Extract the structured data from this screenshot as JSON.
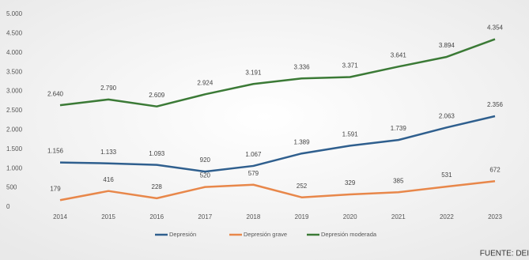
{
  "chart_data": {
    "type": "line",
    "categories": [
      "2014",
      "2015",
      "2016",
      "2017",
      "2018",
      "2019",
      "2020",
      "2021",
      "2022",
      "2023"
    ],
    "series": [
      {
        "name": "Depresión",
        "color": "#2f5f8e",
        "values": [
          1156,
          1133,
          1093,
          920,
          1067,
          1389,
          1591,
          1739,
          2063,
          2356
        ],
        "value_labels": [
          "1.156",
          "1.133",
          "1.093",
          "920",
          "1.067",
          "1.389",
          "1.591",
          "1.739",
          "2.063",
          "2.356"
        ]
      },
      {
        "name": "Depresión grave",
        "color": "#e8874a",
        "values": [
          179,
          416,
          228,
          520,
          579,
          252,
          329,
          385,
          531,
          672
        ]
      },
      {
        "name": "Depresión moderada",
        "color": "#3b7a36",
        "values": [
          2640,
          2790,
          2609,
          2924,
          3191,
          3336,
          3371,
          3641,
          3894,
          4354
        ],
        "value_labels": [
          "2.640",
          "2.790",
          "2.609",
          "2.924",
          "3.191",
          "3.336",
          "3.371",
          "3.641",
          "3.894",
          "4.354"
        ]
      }
    ],
    "ylim": [
      0,
      5000
    ],
    "yticks": [
      0,
      500,
      {
        "value": 1000,
        "label": "1.000"
      },
      {
        "value": 1500,
        "label": "1.500"
      },
      {
        "value": 2000,
        "label": "2.000"
      },
      {
        "value": 2500,
        "label": "2.500"
      },
      {
        "value": 3000,
        "label": "3.000"
      },
      {
        "value": 3500,
        "label": "3.500"
      },
      {
        "value": 4000,
        "label": "4.000"
      },
      {
        "value": 4500,
        "label": "4.500"
      },
      {
        "value": 5000,
        "label": "5.000"
      }
    ],
    "grid": false,
    "source": "FUENTE: DEI"
  }
}
